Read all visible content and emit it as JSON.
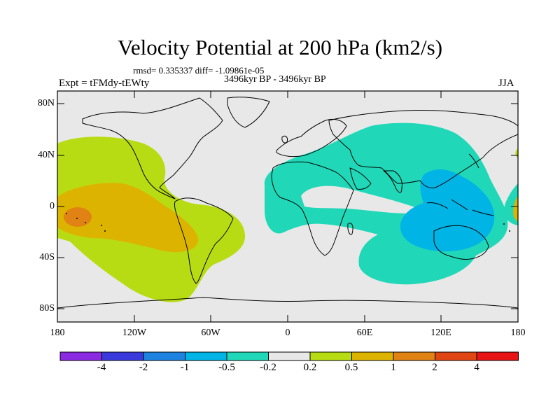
{
  "title": "Velocity Potential at 200 hPa (km2/s)",
  "stats_line": "rmsd= 0.335337 diff= -1.09861e-05",
  "experiment": "Expt = tFMdy-tEWty",
  "period": "3496kyr BP - 3496kyr BP",
  "season": "JJA",
  "lat_labels": [
    "80N",
    "40N",
    "0",
    "40S",
    "80S"
  ],
  "lon_labels": [
    "180",
    "120W",
    "60W",
    "0",
    "60E",
    "120E",
    "180"
  ],
  "colorbar": {
    "labels": [
      "-4",
      "-2",
      "-1",
      "-0.5",
      "-0.2",
      "0.2",
      "0.5",
      "1",
      "2",
      "4"
    ],
    "colors": [
      "#8a2be2",
      "#3a3adc",
      "#1e82e0",
      "#00b4e6",
      "#20d8b8",
      "#e8e8e8",
      "#b8dc14",
      "#dcb400",
      "#e08214",
      "#e04614",
      "#e61414"
    ]
  },
  "map_colors": {
    "ocean_neutral": "#e8e8e8",
    "light_positive": "#b8dc14",
    "mid_positive": "#dcb400",
    "strong_positive": "#e08214",
    "light_negative": "#20d8b8",
    "mid_negative": "#00b4e6"
  }
}
